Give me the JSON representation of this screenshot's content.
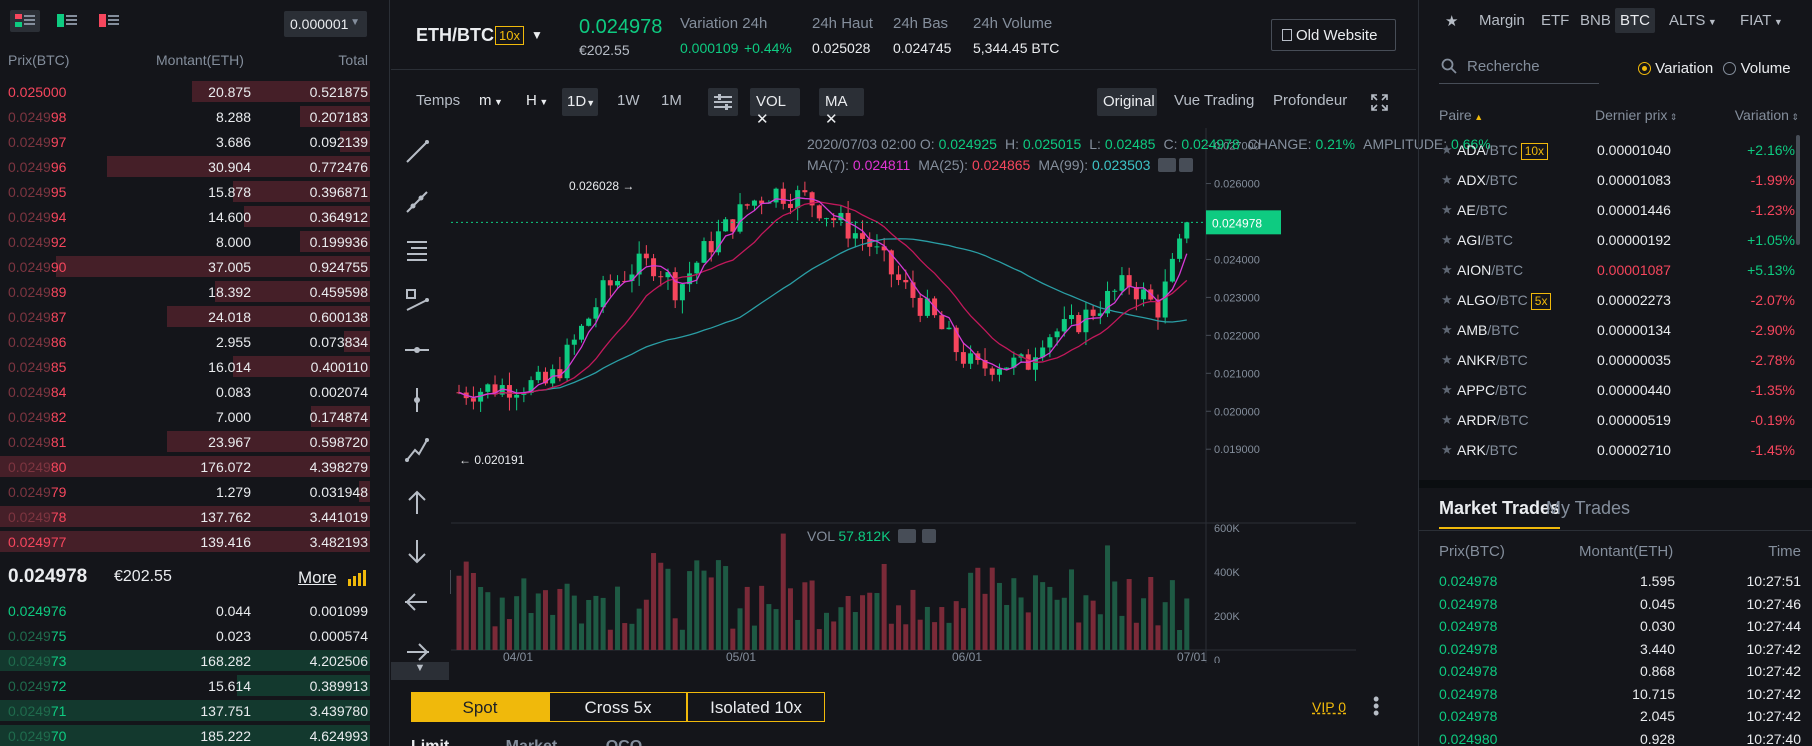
{
  "orderbook": {
    "precision": "0.000001",
    "headers": {
      "price": "Prix(BTC)",
      "amount": "Montant(ETH)",
      "total": "Total"
    },
    "asks": [
      {
        "price": "0.025000",
        "hi": "0.025000",
        "lo": "",
        "amount": "20.875",
        "total": "0.521875",
        "depth": 0.48
      },
      {
        "price": "0.024998",
        "hi": "0.0249",
        "lo": "98",
        "amount": "8.288",
        "total": "0.207183",
        "depth": 0.19
      },
      {
        "price": "0.024997",
        "hi": "0.0249",
        "lo": "97",
        "amount": "3.686",
        "total": "0.092139",
        "depth": 0.08
      },
      {
        "price": "0.024996",
        "hi": "0.0249",
        "lo": "96",
        "amount": "30.904",
        "total": "0.772476",
        "depth": 0.71
      },
      {
        "price": "0.024995",
        "hi": "0.0249",
        "lo": "95",
        "amount": "15.878",
        "total": "0.396871",
        "depth": 0.37
      },
      {
        "price": "0.024994",
        "hi": "0.0249",
        "lo": "94",
        "amount": "14.600",
        "total": "0.364912",
        "depth": 0.34
      },
      {
        "price": "0.024992",
        "hi": "0.0249",
        "lo": "92",
        "amount": "8.000",
        "total": "0.199936",
        "depth": 0.19
      },
      {
        "price": "0.024990",
        "hi": "0.0249",
        "lo": "90",
        "amount": "37.005",
        "total": "0.924755",
        "depth": 0.85
      },
      {
        "price": "0.024989",
        "hi": "0.0249",
        "lo": "89",
        "amount": "18.392",
        "total": "0.459598",
        "depth": 0.42
      },
      {
        "price": "0.024987",
        "hi": "0.0249",
        "lo": "87",
        "amount": "24.018",
        "total": "0.600138",
        "depth": 0.55
      },
      {
        "price": "0.024986",
        "hi": "0.0249",
        "lo": "86",
        "amount": "2.955",
        "total": "0.073834",
        "depth": 0.07
      },
      {
        "price": "0.024985",
        "hi": "0.0249",
        "lo": "85",
        "amount": "16.014",
        "total": "0.400110",
        "depth": 0.37
      },
      {
        "price": "0.024984",
        "hi": "0.0249",
        "lo": "84",
        "amount": "0.083",
        "total": "0.002074",
        "depth": 0.0
      },
      {
        "price": "0.024982",
        "hi": "0.0249",
        "lo": "82",
        "amount": "7.000",
        "total": "0.174874",
        "depth": 0.16
      },
      {
        "price": "0.024981",
        "hi": "0.0249",
        "lo": "81",
        "amount": "23.967",
        "total": "0.598720",
        "depth": 0.55
      },
      {
        "price": "0.024980",
        "hi": "0.0249",
        "lo": "80",
        "amount": "176.072",
        "total": "4.398279",
        "depth": 1.0
      },
      {
        "price": "0.024979",
        "hi": "0.0249",
        "lo": "79",
        "amount": "1.279",
        "total": "0.031948",
        "depth": 0.03
      },
      {
        "price": "0.024978",
        "hi": "0.0249",
        "lo": "78",
        "amount": "137.762",
        "total": "3.441019",
        "depth": 1.0
      },
      {
        "price": "0.024977",
        "hi": "0.024977",
        "lo": "",
        "amount": "139.416",
        "total": "3.482193",
        "depth": 1.0
      }
    ],
    "last_price": "0.024978",
    "last_fiat": "€202.55",
    "more": "More",
    "bids": [
      {
        "price": "0.024976",
        "hi": "0.024976",
        "lo": "",
        "amount": "0.044",
        "total": "0.001099",
        "depth": 0.0
      },
      {
        "price": "0.024975",
        "hi": "0.0249",
        "lo": "75",
        "amount": "0.023",
        "total": "0.000574",
        "depth": 0.0
      },
      {
        "price": "0.024973",
        "hi": "0.0249",
        "lo": "73",
        "amount": "168.282",
        "total": "4.202506",
        "depth": 1.0
      },
      {
        "price": "0.024972",
        "hi": "0.0249",
        "lo": "72",
        "amount": "15.614",
        "total": "0.389913",
        "depth": 0.36
      },
      {
        "price": "0.024971",
        "hi": "0.0249",
        "lo": "71",
        "amount": "137.751",
        "total": "3.439780",
        "depth": 1.0
      },
      {
        "price": "0.024970",
        "hi": "0.0249",
        "lo": "70",
        "amount": "185.222",
        "total": "4.624993",
        "depth": 1.0
      }
    ]
  },
  "header": {
    "pair": "ETH/BTC",
    "leverage": "10x",
    "price": "0.024978",
    "fiat": "€202.55",
    "stats": [
      {
        "label": "Variation 24h",
        "value": "0.000109",
        "extra": "+0.44%"
      },
      {
        "label": "24h Haut",
        "value": "0.025028"
      },
      {
        "label": "24h Bas",
        "value": "0.024745"
      },
      {
        "label": "24h Volume",
        "value": "5,344.45 BTC"
      }
    ],
    "old_website": "Old Website"
  },
  "toolbar": {
    "temps": "Temps",
    "m": "m",
    "h": "H",
    "d1": "1D",
    "w1": "1W",
    "mo1": "1M",
    "vol": "VOL",
    "ma": "MA",
    "views": [
      "Original",
      "Vue Trading",
      "Profondeur"
    ]
  },
  "chart_info": {
    "line1": [
      {
        "k": "2020/07/03 02:00  O:",
        "v": "0.024925"
      },
      {
        "k": "H:",
        "v": "0.025015"
      },
      {
        "k": "L:",
        "v": "0.02485"
      },
      {
        "k": "C:",
        "v": "0.024978"
      },
      {
        "k": "CHANGE:",
        "v": "0.21%"
      },
      {
        "k": "AMPLITUDE:",
        "v": "0.66%"
      }
    ],
    "ma": [
      {
        "k": "MA(7):",
        "v": "0.024811",
        "c": "#e135d4"
      },
      {
        "k": "MA(25):",
        "v": "0.024865",
        "c": "#f6465d"
      },
      {
        "k": "MA(99):",
        "v": "0.023503",
        "c": "#3dc4c7"
      }
    ],
    "vol_label": "VOL",
    "vol_value": "57.812K",
    "high_marker": "0.026028",
    "low_marker": "0.020191",
    "current_tag": "0.024978"
  },
  "chart_data": {
    "type": "candlestick",
    "x_ticks": [
      "04/01",
      "05/01",
      "06/01",
      "07/01"
    ],
    "y_ticks": [
      "0.027000",
      "0.026000",
      "0.025000",
      "0.024000",
      "0.023000",
      "0.022000",
      "0.021000",
      "0.020000",
      "0.019000"
    ],
    "vol_ticks": [
      "600K",
      "400K",
      "200K",
      "0"
    ],
    "ylim": [
      0.0189,
      0.0272
    ],
    "last": 0.024978
  },
  "order_tabs": [
    "Spot",
    "Cross 5x",
    "Isolated 10x"
  ],
  "vip": "VIP 0",
  "bottom_labels": [
    "Limit",
    "Market",
    "OCO"
  ],
  "markets": {
    "tabs": [
      "Margin",
      "ETF",
      "BNB",
      "BTC",
      "ALTS",
      "FIAT"
    ],
    "search_placeholder": "Recherche",
    "radio": [
      "Variation",
      "Volume"
    ],
    "cols": [
      "Paire",
      "Dernier prix",
      "Variation"
    ],
    "pairs": [
      {
        "base": "ADA",
        "quote": "/BTC",
        "lev": "10x",
        "last": "0.00001040",
        "chg": "+2.16%",
        "up": true,
        "lastRed": false
      },
      {
        "base": "ADX",
        "quote": "/BTC",
        "lev": "",
        "last": "0.00001083",
        "chg": "-1.99%",
        "up": false,
        "lastRed": false
      },
      {
        "base": "AE",
        "quote": "/BTC",
        "lev": "",
        "last": "0.00001446",
        "chg": "-1.23%",
        "up": false,
        "lastRed": false
      },
      {
        "base": "AGI",
        "quote": "/BTC",
        "lev": "",
        "last": "0.00000192",
        "chg": "+1.05%",
        "up": true,
        "lastRed": false
      },
      {
        "base": "AION",
        "quote": "/BTC",
        "lev": "",
        "last": "0.00001087",
        "chg": "+5.13%",
        "up": true,
        "lastRed": true
      },
      {
        "base": "ALGO",
        "quote": "/BTC",
        "lev": "5x",
        "last": "0.00002273",
        "chg": "-2.07%",
        "up": false,
        "lastRed": false
      },
      {
        "base": "AMB",
        "quote": "/BTC",
        "lev": "",
        "last": "0.00000134",
        "chg": "-2.90%",
        "up": false,
        "lastRed": false
      },
      {
        "base": "ANKR",
        "quote": "/BTC",
        "lev": "",
        "last": "0.00000035",
        "chg": "-2.78%",
        "up": false,
        "lastRed": false
      },
      {
        "base": "APPC",
        "quote": "/BTC",
        "lev": "",
        "last": "0.00000440",
        "chg": "-1.35%",
        "up": false,
        "lastRed": false
      },
      {
        "base": "ARDR",
        "quote": "/BTC",
        "lev": "",
        "last": "0.00000519",
        "chg": "-0.19%",
        "up": false,
        "lastRed": false
      },
      {
        "base": "ARK",
        "quote": "/BTC",
        "lev": "",
        "last": "0.00002710",
        "chg": "-1.45%",
        "up": false,
        "lastRed": false
      }
    ]
  },
  "trades": {
    "tabs": [
      "Market Trades",
      "My Trades"
    ],
    "cols": [
      "Prix(BTC)",
      "Montant(ETH)",
      "Time"
    ],
    "rows": [
      {
        "p": "0.024978",
        "a": "1.595",
        "t": "10:27:51"
      },
      {
        "p": "0.024978",
        "a": "0.045",
        "t": "10:27:46"
      },
      {
        "p": "0.024978",
        "a": "0.030",
        "t": "10:27:44"
      },
      {
        "p": "0.024978",
        "a": "3.440",
        "t": "10:27:42"
      },
      {
        "p": "0.024978",
        "a": "0.868",
        "t": "10:27:42"
      },
      {
        "p": "0.024978",
        "a": "10.715",
        "t": "10:27:42"
      },
      {
        "p": "0.024978",
        "a": "2.045",
        "t": "10:27:42"
      },
      {
        "p": "0.024980",
        "a": "0.928",
        "t": "10:27:40"
      }
    ]
  }
}
